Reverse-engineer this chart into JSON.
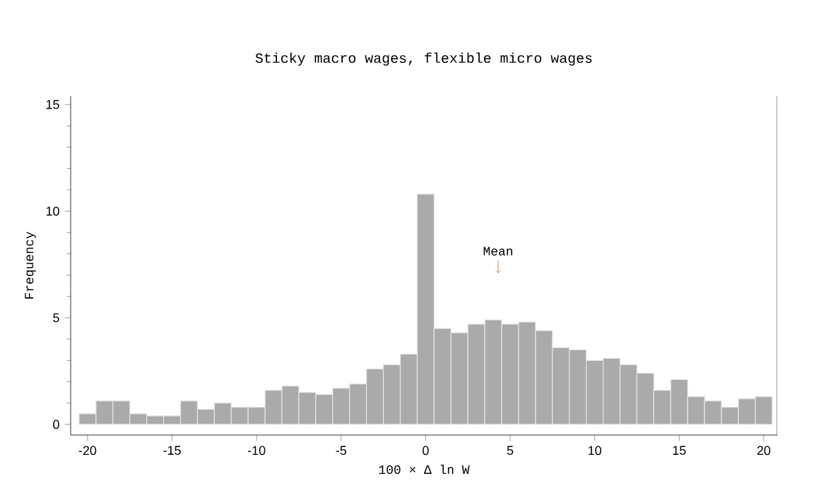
{
  "chart_data": {
    "type": "histogram",
    "title": "Sticky macro wages, flexible micro wages",
    "xlabel": "100 × Δ ln W",
    "ylabel": "Frequency",
    "bins": [
      -20.5,
      -19.5,
      -18.5,
      -17.5,
      -16.5,
      -15.5,
      -14.5,
      -13.5,
      -12.5,
      -11.5,
      -10.5,
      -9.5,
      -8.5,
      -7.5,
      -6.5,
      -5.5,
      -4.5,
      -3.5,
      -2.5,
      -1.5,
      -0.5,
      0.5,
      1.5,
      2.5,
      3.5,
      4.5,
      5.5,
      6.5,
      7.5,
      8.5,
      9.5,
      10.5,
      11.5,
      12.5,
      13.5,
      14.5,
      15.5,
      16.5,
      17.5,
      18.5,
      19.5,
      20.5
    ],
    "values": [
      0.5,
      1.1,
      1.1,
      0.5,
      0.4,
      0.4,
      1.1,
      0.7,
      1.0,
      0.8,
      0.8,
      1.6,
      1.8,
      1.5,
      1.4,
      1.7,
      1.9,
      2.6,
      2.8,
      3.3,
      10.8,
      4.5,
      4.3,
      4.7,
      4.9,
      4.7,
      4.8,
      4.4,
      3.6,
      3.5,
      3.0,
      3.1,
      2.8,
      2.4,
      1.6,
      2.1,
      1.3,
      1.1,
      0.8,
      1.2,
      1.3
    ],
    "color": "#aaaaaa",
    "xlim": [
      -21,
      20.8
    ],
    "ylim": [
      -0.5,
      15.4
    ],
    "xticks": [
      -20,
      -15,
      -10,
      -5,
      0,
      5,
      10,
      15,
      20
    ],
    "yticks": [
      0,
      5,
      10,
      15
    ],
    "annotations": [
      "Mean"
    ],
    "grid": false
  }
}
